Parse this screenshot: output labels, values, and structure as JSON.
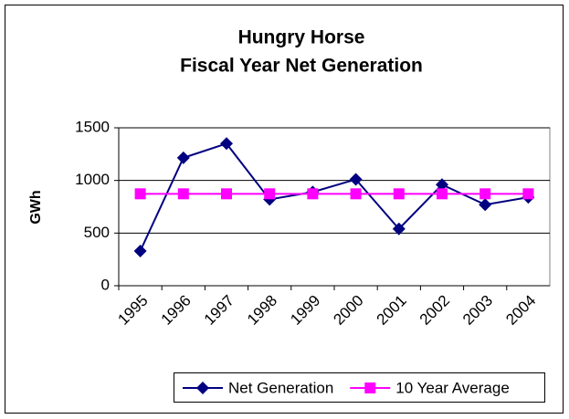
{
  "chart_data": {
    "type": "line",
    "title": "Hungry Horse",
    "subtitle": "Fiscal Year Net Generation",
    "y_label": "GWh",
    "categories": [
      "1995",
      "1996",
      "1997",
      "1998",
      "1999",
      "2000",
      "2001",
      "2002",
      "2003",
      "2004"
    ],
    "series": [
      {
        "name": "Net Generation",
        "color": "#000080",
        "marker": "diamond",
        "values": [
          330,
          1215,
          1350,
          820,
          890,
          1010,
          540,
          960,
          770,
          840
        ]
      },
      {
        "name": "10 Year Average",
        "color": "#ff00ff",
        "marker": "square",
        "values": [
          873,
          873,
          873,
          873,
          873,
          873,
          873,
          873,
          873,
          873
        ]
      }
    ],
    "ylim": [
      0,
      1500
    ],
    "yticks": [
      0,
      500,
      1000,
      1500
    ],
    "grid": true,
    "legend": "bottom"
  }
}
